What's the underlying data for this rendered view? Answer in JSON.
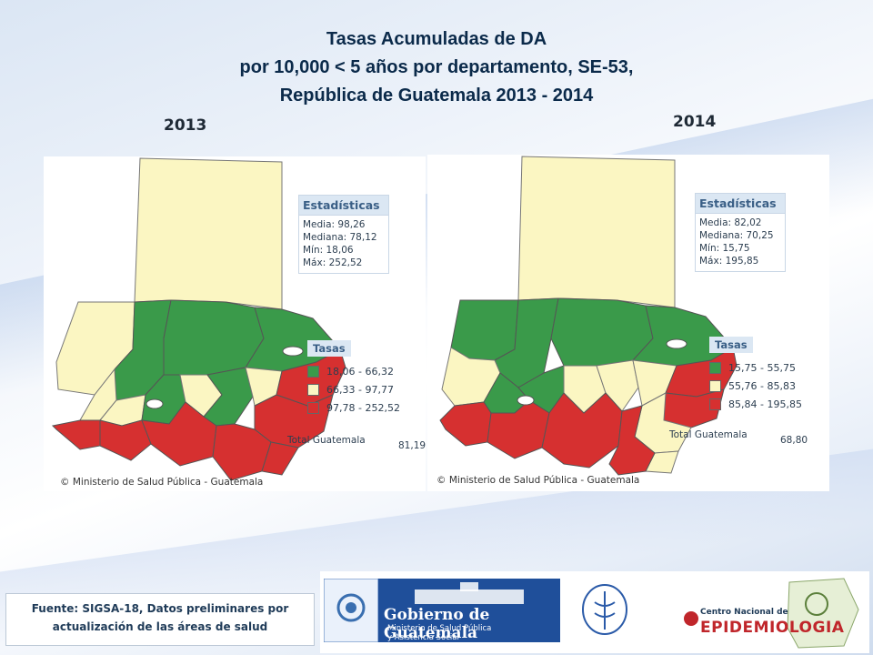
{
  "title": {
    "line1": "Tasas Acumuladas de DA",
    "line2": "por 10,000  < 5 años  por departamento, SE-53,",
    "line3": "República de Guatemala  2013  -  2014"
  },
  "maps": [
    {
      "year": "2013",
      "stats_title": "Estadísticas",
      "stats": [
        "Media: 98,26",
        "Mediana: 78,12",
        "Mín: 18,06",
        "Máx: 252,52"
      ],
      "legend_title": "Tasas",
      "legend": [
        {
          "label": "18,06 - 66,32",
          "color": "#3a9a4a"
        },
        {
          "label": "66,33 - 97,77",
          "color": "#fbf6c2"
        },
        {
          "label": "97,78 - 252,52",
          "color": "#d63030"
        }
      ],
      "total_label": "Total Guatemala",
      "total_value": "81,19",
      "copyright": "© Ministerio de Salud Pública - Guatemala"
    },
    {
      "year": "2014",
      "stats_title": "Estadísticas",
      "stats": [
        "Media: 82,02",
        "Mediana: 70,25",
        "Mín: 15,75",
        "Máx: 195,85"
      ],
      "legend_title": "Tasas",
      "legend": [
        {
          "label": "15,75 - 55,75",
          "color": "#3a9a4a"
        },
        {
          "label": "55,76 - 85,83",
          "color": "#fbf6c2"
        },
        {
          "label": "85,84 - 195,85",
          "color": "#d63030"
        }
      ],
      "total_label": "Total Guatemala",
      "total_value": "68,80",
      "copyright": "© Ministerio de Salud Pública - Guatemala"
    }
  ],
  "source": {
    "line1": "Fuente: SIGSA-18, Datos preliminares por",
    "line2": "actualización de las áreas de salud"
  },
  "logos": {
    "gov_name": "Gobierno de Guatemala",
    "gov_sub1": "Ministerio de Salud Pública",
    "gov_sub2": "y Asistencia Social",
    "epi_small": "Centro Nacional de",
    "epi_big": "EPIDEMIOLOGIA"
  },
  "colors": {
    "green": "#3a9a4a",
    "yellow": "#fbf6c2",
    "red": "#d63030",
    "peten": "#fbf6c2"
  }
}
